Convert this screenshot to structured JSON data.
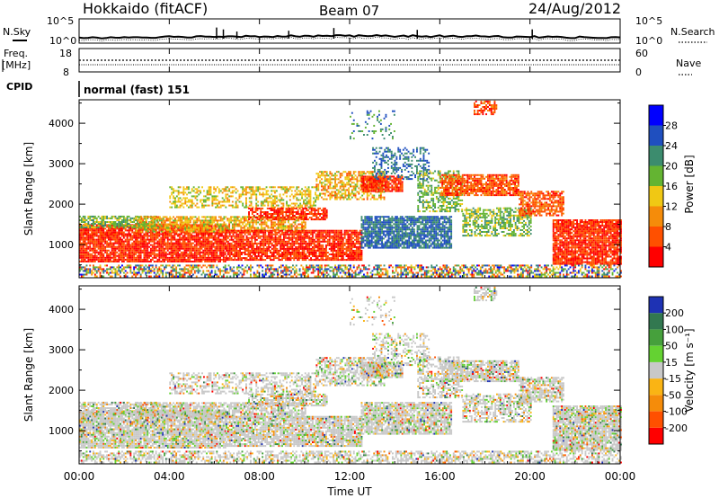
{
  "header": {
    "title": "Hokkaido (fitACF)",
    "beam": "Beam 07",
    "date": "24/Aug/2012"
  },
  "top_panels": {
    "nsky_label": "N.Sky",
    "nsearch_label": "N.Search",
    "noise_ticks": [
      "10^5",
      "10^0"
    ],
    "freq_label_1": "Freq.",
    "freq_label_2": "[MHz]",
    "freq_ticks": [
      "18",
      "8"
    ],
    "nave_label": "Nave",
    "nave_ticks": [
      "60",
      "0"
    ],
    "cpid_label": "CPID",
    "cpid_text": "normal (fast) 151"
  },
  "chart_data": [
    {
      "type": "heatmap",
      "name": "power",
      "ylabel": "Slant Range [km]",
      "xlabel": "",
      "x_ticks": [
        "00:00",
        "04:00",
        "08:00",
        "12:00",
        "16:00",
        "20:00",
        "00:00"
      ],
      "x_range_hours": [
        0,
        24
      ],
      "y_ticks": [
        1000,
        2000,
        3000,
        4000
      ],
      "y_range_km": [
        180,
        4580
      ],
      "colorbar_label": "Power [dB]",
      "colorbar_ticks": [
        "4",
        "8",
        "12",
        "16",
        "20",
        "24",
        "28"
      ],
      "colorbar_colors": [
        "#0000ff",
        "#1f4fbf",
        "#3c8c6e",
        "#64b432",
        "#f0c814",
        "#f58c0a",
        "#ff5000",
        "#ff0000"
      ]
    },
    {
      "type": "heatmap",
      "name": "velocity",
      "ylabel": "Slant Range [km]",
      "xlabel": "Time UT",
      "x_ticks": [
        "00:00",
        "04:00",
        "08:00",
        "12:00",
        "16:00",
        "20:00",
        "00:00"
      ],
      "x_range_hours": [
        0,
        24
      ],
      "y_ticks": [
        1000,
        2000,
        3000,
        4000
      ],
      "y_range_km": [
        180,
        4580
      ],
      "colorbar_label": "Velocity [m s⁻¹]",
      "colorbar_ticks": [
        "200",
        "100",
        "50",
        "15",
        "-15",
        "-50",
        "-100",
        "-200"
      ],
      "colorbar_colors": [
        "#1e32b4",
        "#327850",
        "#46a03c",
        "#64d232",
        "#c8c8c8",
        "#fab414",
        "#f58c0a",
        "#ff5000",
        "#ff0000"
      ]
    }
  ]
}
